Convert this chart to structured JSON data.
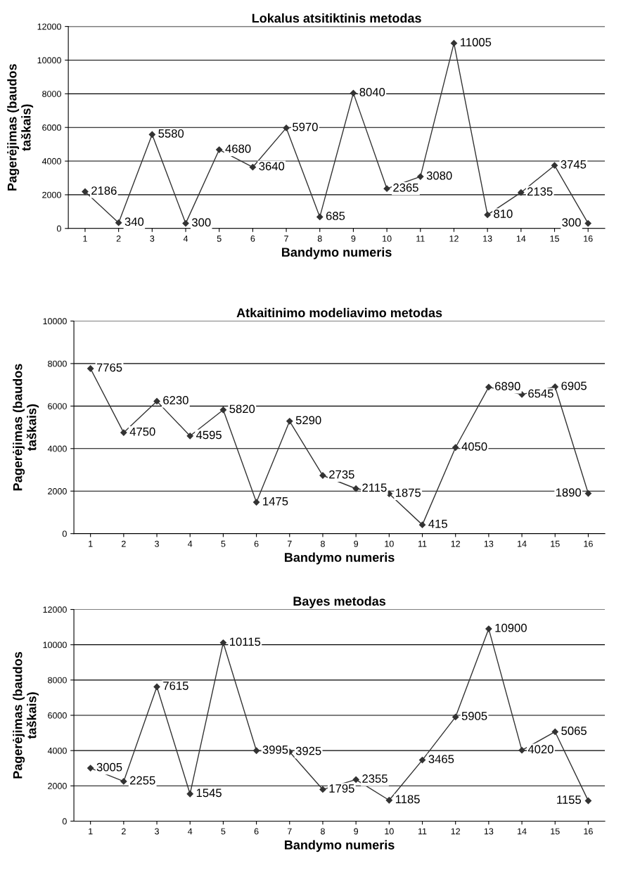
{
  "chart_data": [
    {
      "type": "line",
      "title": "Lokalus atsitiktinis metodas",
      "xlabel": "Bandymo numeris",
      "ylabel": "Pagerėjimas (baudos\ntaškais)",
      "categories": [
        "1",
        "2",
        "3",
        "4",
        "5",
        "6",
        "7",
        "8",
        "9",
        "10",
        "11",
        "12",
        "13",
        "14",
        "15",
        "16"
      ],
      "series": [
        {
          "color": "#333333",
          "values": [
            2186,
            340,
            5580,
            300,
            4680,
            3640,
            5970,
            685,
            8040,
            2365,
            3080,
            11005,
            810,
            2135,
            3745,
            300
          ]
        }
      ],
      "ylim": [
        0,
        12000
      ],
      "yticks": [
        0,
        2000,
        4000,
        6000,
        8000,
        10000,
        12000
      ],
      "grid": "y",
      "marker": "diamond",
      "line_style": "solid",
      "data_labels": true
    },
    {
      "type": "line",
      "title": "Atkaitinimo modeliavimo metodas",
      "xlabel": "Bandymo numeris",
      "ylabel": "Pagerėjimas (baudos\ntaškais)",
      "categories": [
        "1",
        "2",
        "3",
        "4",
        "5",
        "6",
        "7",
        "8",
        "9",
        "10",
        "11",
        "12",
        "13",
        "14",
        "15",
        "16"
      ],
      "series": [
        {
          "color": "#333333",
          "values": [
            7765,
            4750,
            6230,
            4595,
            5820,
            1475,
            5290,
            2735,
            2115,
            1875,
            415,
            4050,
            6890,
            6545,
            6905,
            1890
          ]
        }
      ],
      "ylim": [
        0,
        10000
      ],
      "yticks": [
        0,
        2000,
        4000,
        6000,
        8000,
        10000
      ],
      "grid": "y",
      "marker": "diamond",
      "line_style": "solid",
      "data_labels": true
    },
    {
      "type": "line",
      "title": "Bayes metodas",
      "xlabel": "Bandymo numeris",
      "ylabel": "Pagerėjimas (baudos\ntaškais)",
      "categories": [
        "1",
        "2",
        "3",
        "4",
        "5",
        "6",
        "7",
        "8",
        "9",
        "10",
        "11",
        "12",
        "13",
        "14",
        "15",
        "16"
      ],
      "series": [
        {
          "color": "#333333",
          "values": [
            3005,
            2255,
            7615,
            1545,
            10115,
            3995,
            3925,
            1795,
            2355,
            1185,
            3465,
            5905,
            10900,
            4020,
            5065,
            1155
          ]
        }
      ],
      "ylim": [
        0,
        12000
      ],
      "yticks": [
        0,
        2000,
        4000,
        6000,
        8000,
        10000,
        12000
      ],
      "grid": "y",
      "marker": "diamond",
      "line_style": "solid",
      "data_labels": true
    }
  ]
}
